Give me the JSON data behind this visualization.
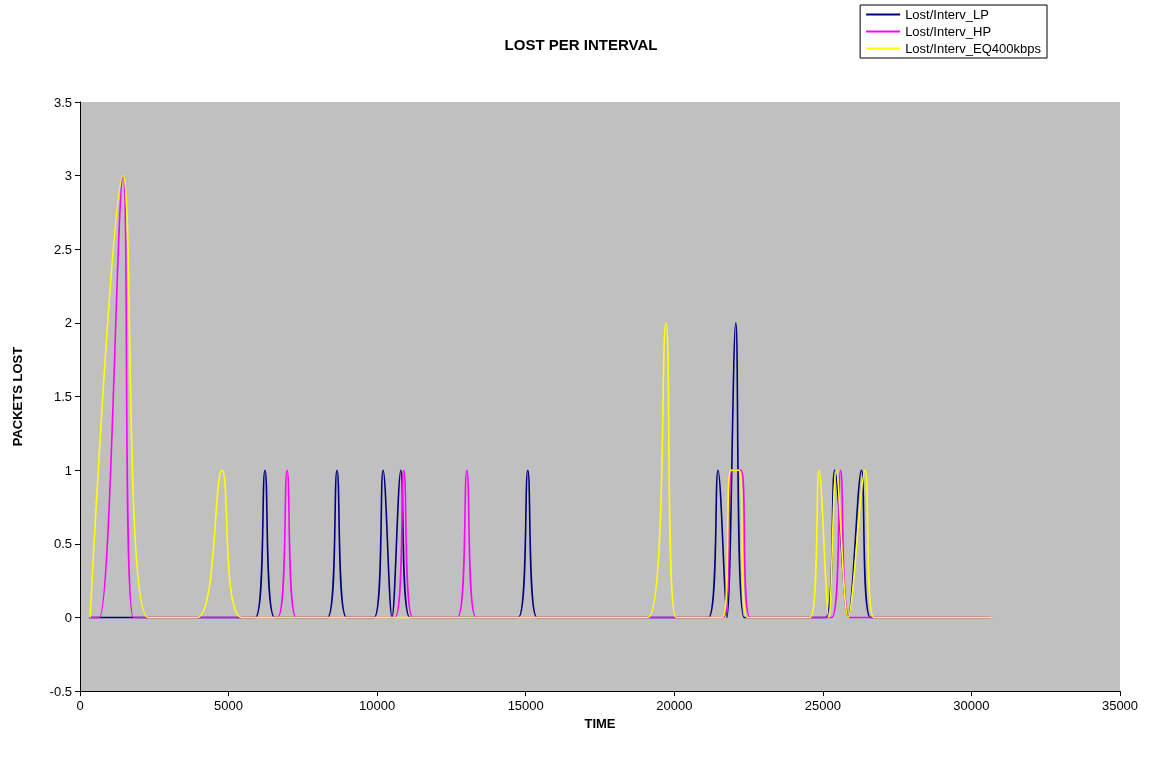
{
  "chart_data": {
    "type": "line",
    "title": "LOST PER INTERVAL",
    "xlabel": "TIME",
    "ylabel": "PACKETS LOST",
    "xlim": [
      0,
      35000
    ],
    "xticks": [
      0,
      5000,
      10000,
      15000,
      20000,
      25000,
      30000,
      35000
    ],
    "ylim": [
      -0.5,
      3.5
    ],
    "yticks": [
      -0.5,
      0,
      0.5,
      1,
      1.5,
      2,
      2.5,
      3,
      3.5
    ],
    "grid": false,
    "legend": "top right",
    "series": [
      {
        "name": "Lost/Interv_LP",
        "color": "#000080",
        "x": [
          300,
          5900,
          6225,
          6550,
          8330,
          8650,
          8970,
          9900,
          10200,
          10500,
          10800,
          11100,
          14750,
          15070,
          15380,
          21150,
          21470,
          21770,
          22070,
          22350,
          25100,
          25400,
          25850,
          26300,
          26600,
          30600
        ],
        "values": [
          0,
          0,
          1,
          0,
          0,
          1,
          0,
          0,
          1,
          0,
          1,
          0,
          0,
          1,
          0,
          0,
          1,
          0,
          2,
          0,
          0,
          1,
          0,
          1,
          0,
          0
        ]
      },
      {
        "name": "Lost/Interv_HP",
        "color": "#ff00ff",
        "x": [
          300,
          650,
          1450,
          1800,
          6650,
          6970,
          7280,
          10600,
          10900,
          11200,
          12700,
          13020,
          13330,
          21650,
          21950,
          22250,
          22550,
          25300,
          25600,
          25900,
          30700
        ],
        "values": [
          0,
          0,
          3,
          0,
          0,
          1,
          0,
          0,
          1,
          0,
          0,
          1,
          0,
          0,
          1,
          1,
          0,
          0,
          1,
          0,
          0
        ]
      },
      {
        "name": "Lost/Interv_EQ400kbps",
        "color": "#ffff00",
        "x": [
          340,
          1450,
          2290,
          3940,
          4780,
          5450,
          19110,
          19720,
          20060,
          21620,
          21900,
          22180,
          22450,
          24570,
          24870,
          25200,
          25450,
          25850,
          26420,
          26720,
          30700
        ],
        "values": [
          0,
          3,
          0,
          0,
          1,
          0,
          0,
          2,
          0,
          0,
          1,
          1,
          0,
          0,
          1,
          0,
          1,
          0,
          1,
          0,
          0
        ]
      }
    ]
  }
}
